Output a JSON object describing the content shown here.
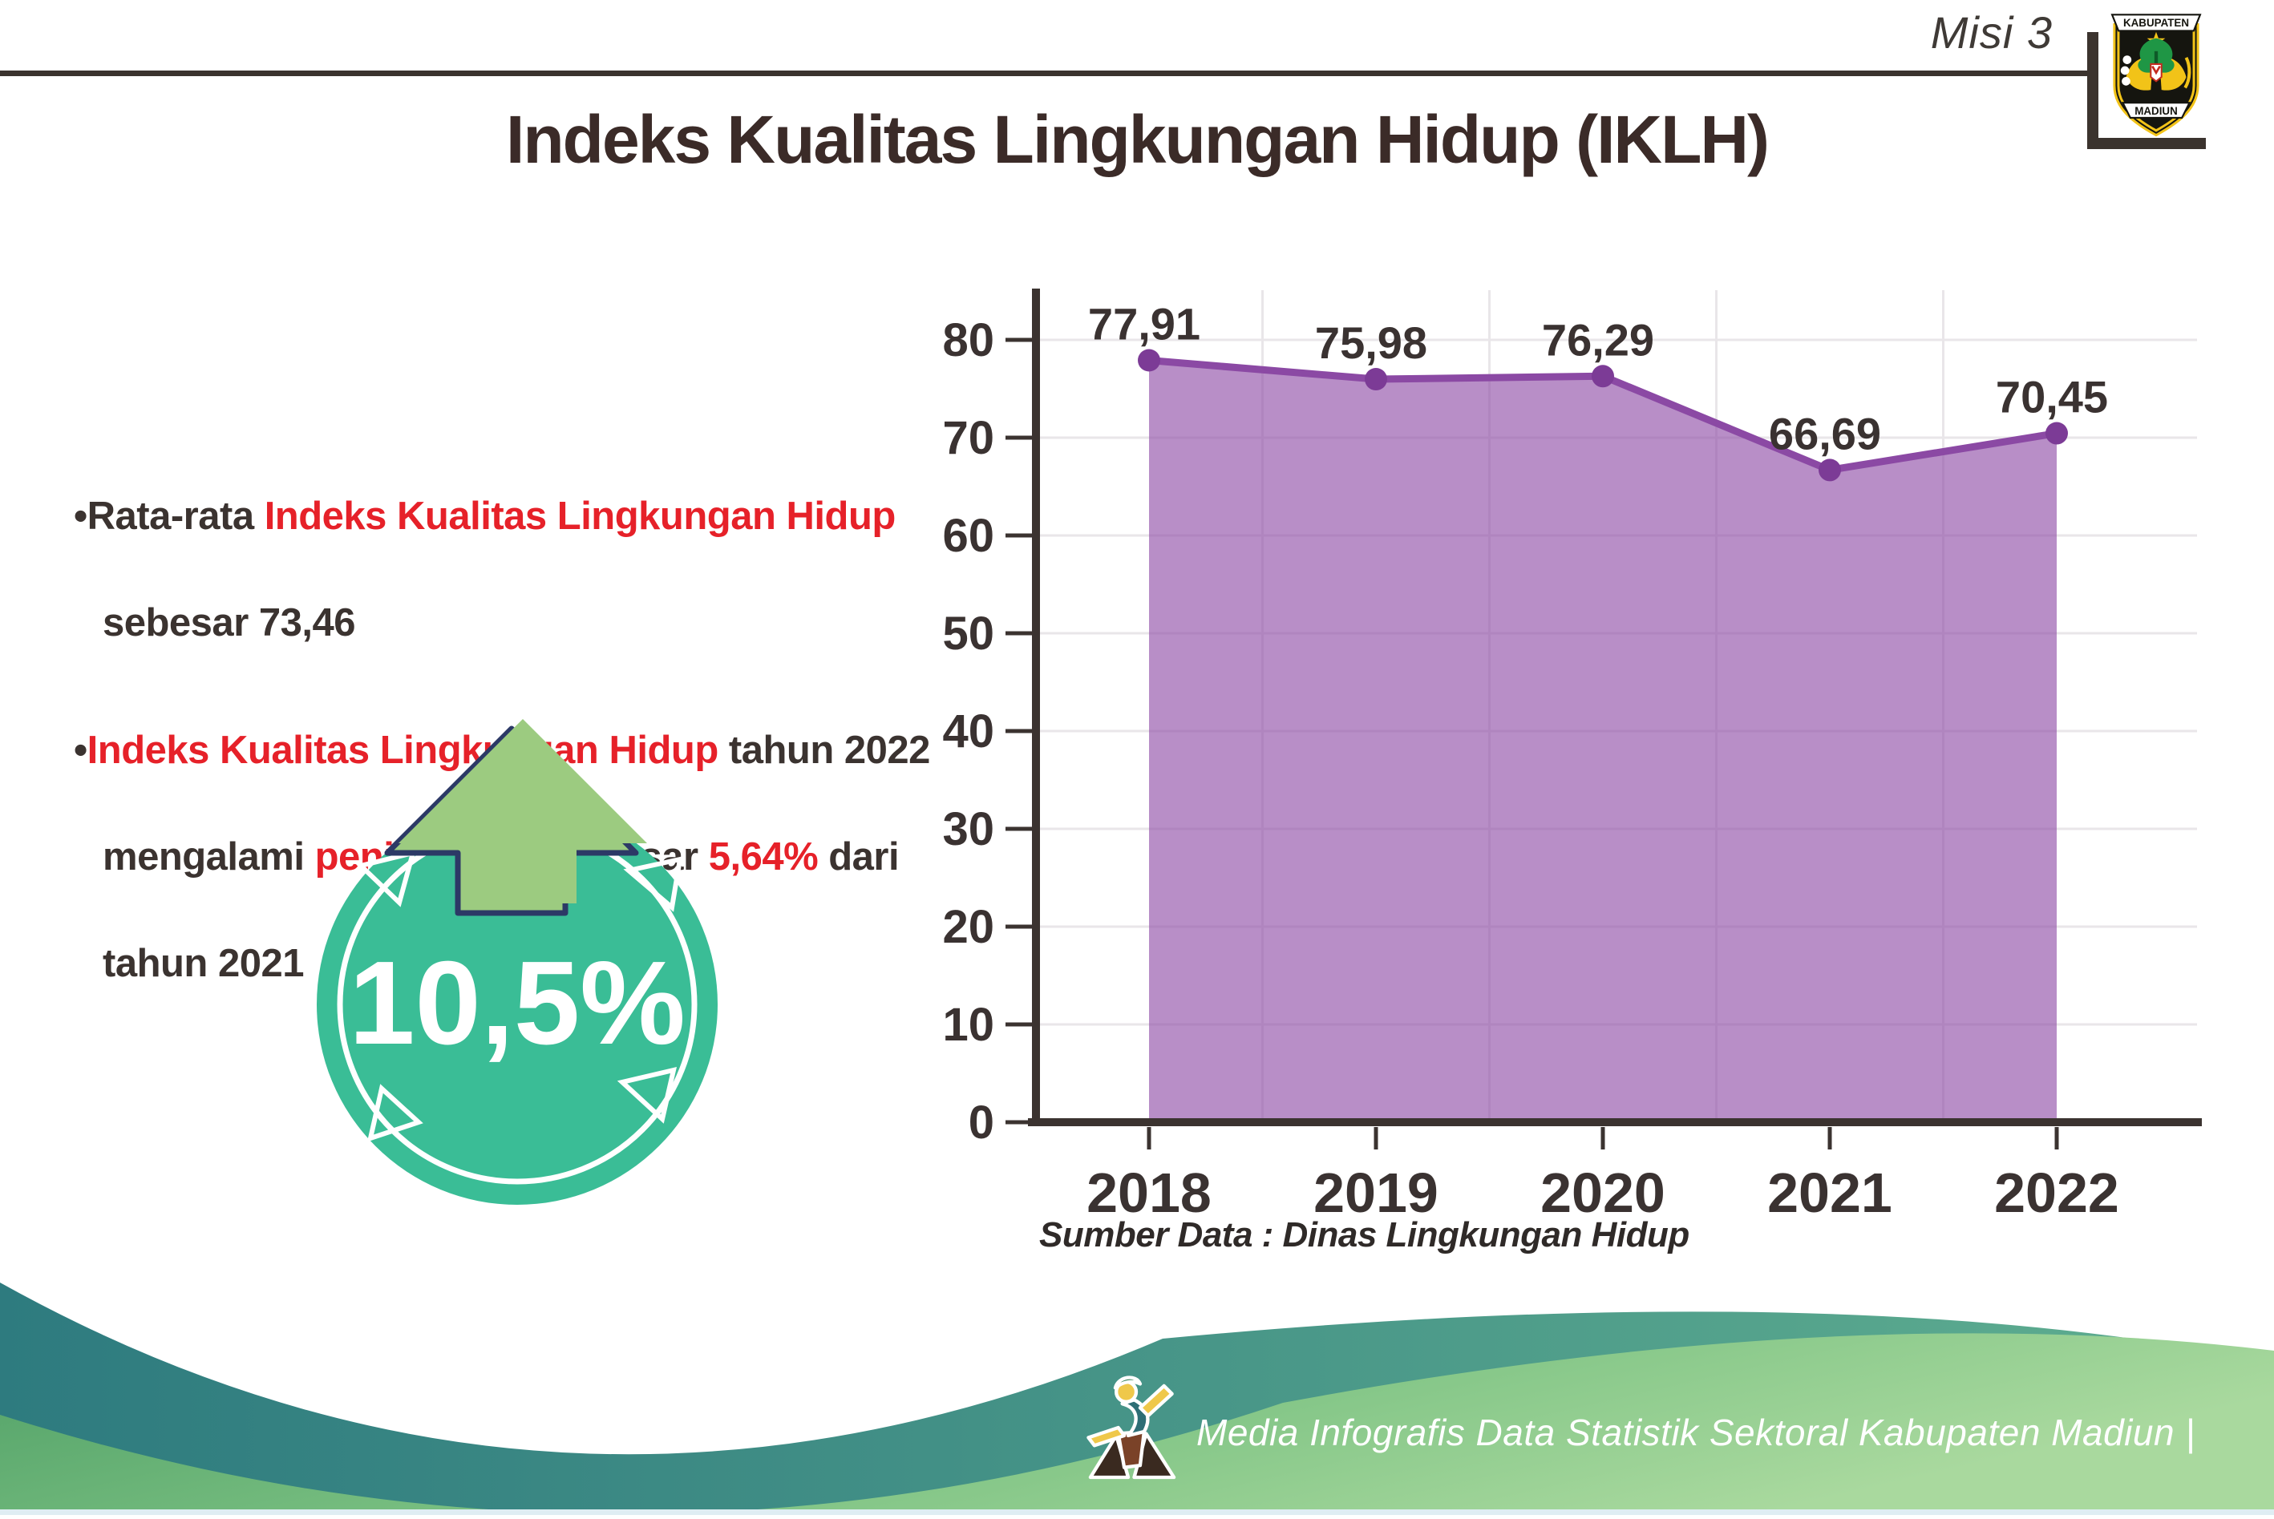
{
  "header": {
    "mission_label": "Misi 3",
    "logo": {
      "top_text": "KABUPATEN",
      "bottom_text": "MADIUN"
    }
  },
  "title": "Indeks Kualitas Lingkungan Hidup (IKLH)",
  "bullets": [
    {
      "lines": [
        [
          {
            "t": "•",
            "c": "dark"
          },
          {
            "t": "Rata-rata ",
            "c": "dark"
          },
          {
            "t": "Indeks Kualitas Lingkungan Hidup",
            "c": "red"
          }
        ],
        [
          {
            "t": "sebesar 73,46",
            "c": "dark"
          }
        ]
      ]
    },
    {
      "lines": [
        [
          {
            "t": "•",
            "c": "dark"
          },
          {
            "t": "Indeks Kualitas Lingkungan Hidup",
            "c": "red"
          },
          {
            "t": " tahun 2022",
            "c": "dark"
          }
        ],
        [
          {
            "t": "mengalami ",
            "c": "dark"
          },
          {
            "t": "peningkatan",
            "c": "red"
          },
          {
            "t": " sebesar ",
            "c": "dark"
          },
          {
            "t": "5,64%",
            "c": "red"
          },
          {
            "t": " dari",
            "c": "dark"
          }
        ],
        [
          {
            "t": "tahun 2021",
            "c": "dark"
          }
        ]
      ]
    }
  ],
  "badge": {
    "value": "10,5%"
  },
  "chart_data": {
    "type": "area",
    "categories": [
      "2018",
      "2019",
      "2020",
      "2021",
      "2022"
    ],
    "values": [
      77.91,
      75.98,
      76.29,
      66.69,
      70.45
    ],
    "point_labels": [
      "77,91",
      "75,98",
      "76,29",
      "66,69",
      "70,45"
    ],
    "title": "",
    "xlabel": "",
    "ylabel": "",
    "ylim": [
      0,
      80
    ],
    "ytick_step": 10,
    "grid": true,
    "legend": false,
    "source_note": "Sumber Data : Dinas Lingkungan Hidup",
    "colors": {
      "line": "#8B49A4",
      "fill": "rgba(140,73,164,0.62)",
      "dot": "#7C3B96",
      "axis": "#3B3330",
      "grid": "#E9E6E9",
      "label": "#3A3231"
    }
  },
  "footer": {
    "credit": "Media Infografis Data Statistik Sektoral Kabupaten Madiun |"
  },
  "colors": {
    "accent_red": "#E62129",
    "text_dark": "#3B3330",
    "badge_teal": "#3ABD96",
    "arrow_green": "#9CCB80",
    "arrow_outline_navy": "#2C3966",
    "wave_teal_dark": "#2E7B7F",
    "wave_teal_light": "#5FAE90",
    "wave_green_dark": "#4F9F66",
    "wave_green_light": "#A9D99E"
  }
}
